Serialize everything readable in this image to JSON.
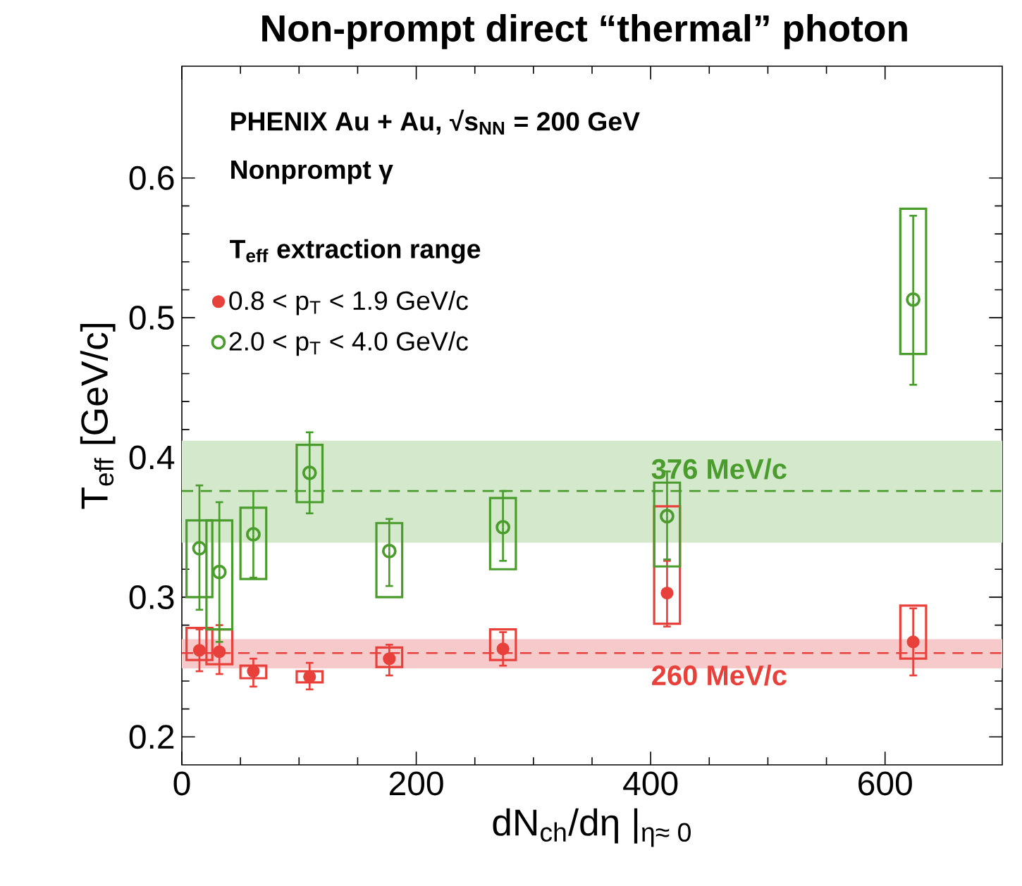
{
  "chart_data": {
    "type": "scatter",
    "title": "Non-prompt direct “thermal” photon",
    "xlabel": "dN$_{ch}$/dη |$_{η≈ 0}$",
    "ylabel": "T$_{eff}$ [GeV/c]",
    "annotations": [
      "PHENIX Au + Au, √s$_{NN}$ = 200 GeV",
      "Nonprompt γ"
    ],
    "legend_title": "T$_{eff}$ extraction range",
    "legend": "top left",
    "x": [
      15,
      32,
      61,
      109,
      177,
      274,
      414,
      624
    ],
    "xlim": [
      0,
      700
    ],
    "xticks": [
      0,
      200,
      400,
      600
    ],
    "ylim": [
      0.18,
      0.68
    ],
    "yticks": [
      0.2,
      0.3,
      0.4,
      0.5,
      0.6
    ],
    "bands": [
      {
        "axis": "y",
        "from": 0.339,
        "to": 0.412,
        "color": "#d4e8cc"
      },
      {
        "axis": "y",
        "from": 0.249,
        "to": 0.27,
        "color": "#f6caca"
      }
    ],
    "ref_lines": [
      {
        "axis": "y",
        "value": 0.376,
        "label": "376 MeV/c",
        "color": "#4a9c2d",
        "line_style": "dashed"
      },
      {
        "axis": "y",
        "value": 0.26,
        "label": "260 MeV/c",
        "color": "#e8403a",
        "line_style": "dashed"
      }
    ],
    "series": [
      {
        "marker": "circle",
        "name": "0.8 < p$_{T}$ < 1.9 GeV/c",
        "color": "#e8403a",
        "values": [
          0.262,
          0.261,
          0.247,
          0.243,
          0.256,
          0.263,
          0.303,
          0.268
        ],
        "errors": [
          [
            0.247,
            0.277
          ],
          [
            0.245,
            0.28
          ],
          [
            0.236,
            0.256
          ],
          [
            0.234,
            0.253
          ],
          [
            0.244,
            0.266
          ],
          [
            0.251,
            0.275
          ],
          [
            0.279,
            0.326
          ],
          [
            0.244,
            0.292
          ]
        ]
      },
      {
        "marker": "circle",
        "name": "2.0 < p$_{T}$ < 4.0 GeV/c",
        "color": "#4a9c2d",
        "values": [
          0.335,
          0.318,
          0.345,
          0.389,
          0.333,
          0.35,
          0.358,
          0.513
        ],
        "errors": [
          [
            0.291,
            0.38
          ],
          [
            0.268,
            0.368
          ],
          [
            0.314,
            0.376
          ],
          [
            0.36,
            0.418
          ],
          [
            0.308,
            0.356
          ],
          [
            0.326,
            0.376
          ],
          [
            0.327,
            0.39
          ],
          [
            0.452,
            0.573
          ]
        ]
      },
      {
        "type": "bar",
        "color": "#e8403a",
        "base": [
          0.255,
          0.252,
          0.242,
          0.239,
          0.25,
          0.255,
          0.281,
          0.256
        ],
        "values": [
          0.023,
          0.025,
          0.009,
          0.008,
          0.014,
          0.022,
          0.084,
          0.038
        ]
      },
      {
        "type": "bar",
        "color": "#4a9c2d",
        "base": [
          0.3,
          0.277,
          0.313,
          0.368,
          0.3,
          0.32,
          0.322,
          0.474
        ],
        "values": [
          0.055,
          0.078,
          0.051,
          0.041,
          0.053,
          0.051,
          0.06,
          0.104
        ]
      }
    ]
  }
}
